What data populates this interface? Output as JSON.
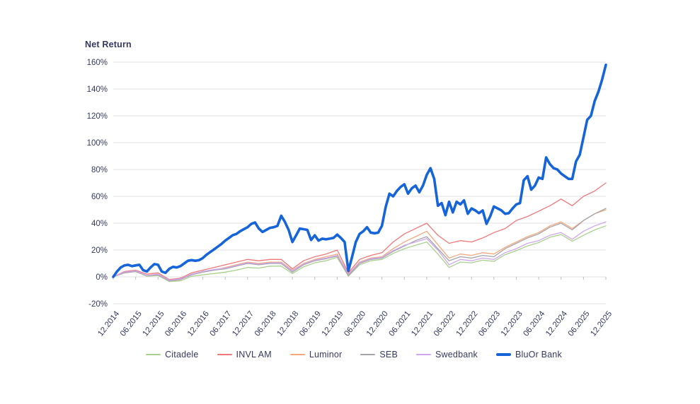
{
  "title": "Net Return",
  "colors": {
    "text": "#363a5e",
    "grid": "#e2e2e7",
    "tick": "#bbbcc8",
    "background": "#ffffff"
  },
  "chart_data": {
    "type": "line",
    "title": "Net Return",
    "xlabel": "",
    "ylabel": "Net Return",
    "ylim": [
      -20,
      160
    ],
    "y_step": 20,
    "y_tick_suffix": "%",
    "grid": true,
    "legend_position": "bottom",
    "x_tick_labels": [
      "12.2014",
      "06.2015",
      "12.2015",
      "06.2016",
      "12.2016",
      "06.2017",
      "12.2017",
      "06.2018",
      "12.2018",
      "06.2019",
      "12.2019",
      "06.2020",
      "12.2020",
      "06.2021",
      "12.2021",
      "06.2022",
      "12.2022",
      "06.2023",
      "12.2023",
      "06.2024",
      "12.2024",
      "06.2025",
      "12.2025"
    ],
    "series": [
      {
        "name": "Citadele",
        "color": "#a9d08e",
        "width": 1.3,
        "points_per_year": 4,
        "values": [
          0,
          3,
          4,
          0.5,
          1,
          -3.5,
          -3,
          0.5,
          1.5,
          2.5,
          3.5,
          5,
          7,
          6.5,
          8,
          8,
          2.5,
          7.5,
          10.5,
          12,
          14.5,
          0.5,
          9,
          12,
          13,
          17.5,
          21,
          23.5,
          26,
          17,
          7,
          11,
          10.5,
          12.5,
          11.5,
          16.5,
          19.5,
          23,
          25.5,
          29.5,
          31.5,
          26.5,
          31,
          35,
          38
        ]
      },
      {
        "name": "INVL AM",
        "color": "#f0777a",
        "width": 1.3,
        "points_per_year": 4,
        "values": [
          0,
          4,
          5,
          2,
          3,
          -2,
          -1,
          3,
          5,
          7,
          9,
          11,
          13,
          12,
          13,
          13,
          6,
          12,
          15,
          17,
          20,
          3,
          13,
          16,
          18,
          26,
          32,
          36,
          40,
          31,
          25,
          27,
          26,
          29,
          33,
          36,
          42,
          45,
          49,
          53,
          58,
          53,
          60,
          64,
          70
        ]
      },
      {
        "name": "Luminor",
        "color": "#f4a97c",
        "width": 1.3,
        "points_per_year": 4,
        "values": [
          0,
          3,
          4,
          1,
          2,
          -3,
          -2,
          2,
          4,
          5,
          7,
          9,
          11,
          10,
          11,
          11,
          5,
          10,
          13,
          15,
          17,
          2,
          11,
          14,
          15,
          21,
          26,
          30,
          34,
          24,
          14,
          17,
          16,
          18,
          17,
          22,
          26,
          30,
          33,
          38,
          41,
          36,
          42,
          47,
          50
        ]
      },
      {
        "name": "SEB",
        "color": "#a3a3a8",
        "width": 1.3,
        "points_per_year": 4,
        "values": [
          0,
          3,
          4,
          1,
          1.5,
          -3,
          -2,
          1.5,
          3.5,
          5,
          6,
          8,
          10,
          9,
          10,
          10,
          3.5,
          9,
          12,
          13.5,
          15.5,
          1,
          10,
          13,
          14,
          19,
          23,
          27,
          30,
          21,
          12,
          15,
          14,
          16,
          15,
          21,
          25,
          29,
          32,
          37,
          40,
          35,
          42,
          47,
          51
        ]
      },
      {
        "name": "Swedbank",
        "color": "#cda6ef",
        "width": 1.3,
        "points_per_year": 4,
        "values": [
          0,
          3.5,
          4.5,
          1,
          2,
          -2.5,
          -1.5,
          2,
          4,
          5.5,
          6.5,
          8.5,
          10.5,
          9.5,
          10.5,
          10.5,
          4.5,
          9.5,
          12.5,
          14,
          16,
          2,
          10.5,
          13.5,
          14.5,
          19.5,
          23.5,
          26,
          28.5,
          20,
          9,
          13,
          12,
          14,
          13,
          18,
          21,
          25,
          27,
          31,
          33,
          28,
          34,
          38,
          41
        ]
      },
      {
        "name": "BluOr Bank",
        "color": "#1564d9",
        "width": 3.6,
        "points_per_year": 12,
        "values": [
          0,
          4,
          7,
          8.5,
          9,
          8,
          8.5,
          9,
          5,
          4,
          7,
          9.5,
          9,
          4,
          3,
          6,
          7.5,
          7,
          8,
          10,
          12,
          12.5,
          12,
          12.5,
          14,
          16.5,
          18.5,
          20.5,
          22.5,
          24.5,
          27,
          29,
          31,
          32,
          34,
          35.5,
          37,
          39.5,
          40.5,
          36,
          33.5,
          35,
          36.5,
          37,
          38,
          45.5,
          41,
          35,
          26,
          31,
          36,
          35.5,
          35,
          27.5,
          31,
          27,
          28.5,
          28,
          28.5,
          29,
          31.5,
          29,
          26,
          4.5,
          15,
          26,
          32,
          34,
          37,
          33,
          32.5,
          33,
          38,
          52,
          62,
          60,
          64,
          67,
          69,
          62,
          66,
          68,
          63,
          68,
          76,
          81,
          73,
          53,
          55,
          46,
          56,
          48,
          56,
          54,
          57,
          47,
          51,
          49.5,
          47.5,
          49.5,
          39.5,
          45,
          52.5,
          51,
          49.5,
          47,
          47.5,
          51,
          54,
          55,
          72,
          75,
          65,
          68,
          74,
          73,
          89,
          84,
          81,
          80,
          77,
          75,
          73,
          73,
          86,
          91,
          104,
          117,
          120,
          131,
          138,
          147,
          158
        ]
      }
    ]
  },
  "legend": {
    "items": [
      "Citadele",
      "INVL AM",
      "Luminor",
      "SEB",
      "Swedbank",
      "BluOr Bank"
    ]
  }
}
